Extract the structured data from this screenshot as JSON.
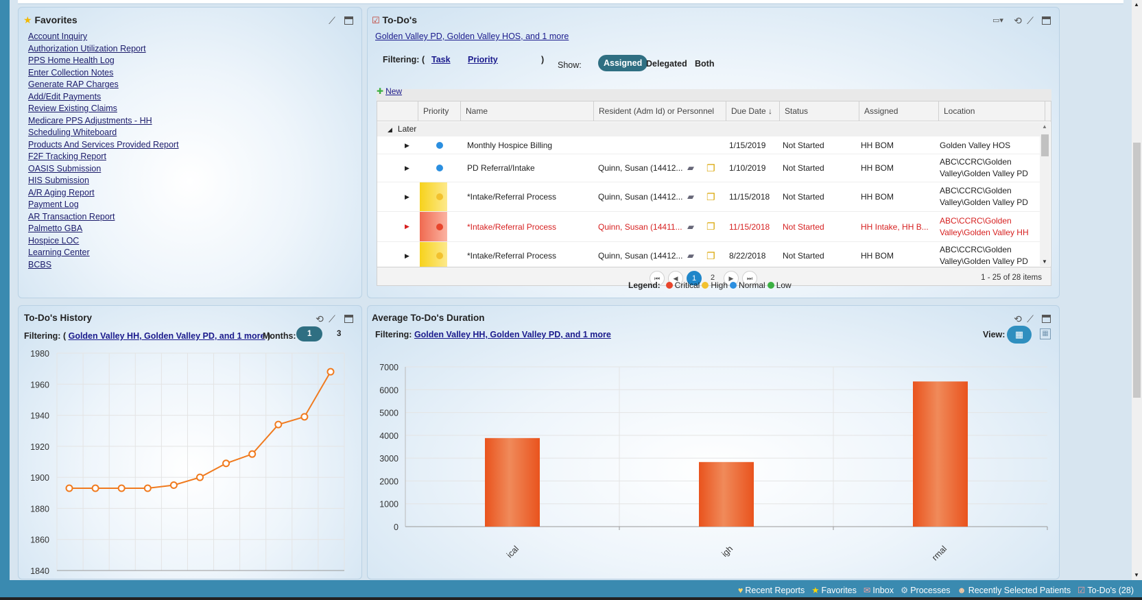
{
  "favorites": {
    "title": "Favorites",
    "items": [
      "Account Inquiry",
      "Authorization Utilization Report",
      "PPS Home Health Log",
      "Enter Collection Notes",
      "Generate RAP Charges",
      "Add/Edit Payments",
      "Review Existing Claims",
      "Medicare PPS Adjustments - HH",
      "Scheduling Whiteboard",
      "Products And Services Provided Report",
      "F2F Tracking Report",
      "OASIS Submission",
      "HIS Submission",
      "A/R Aging Report",
      "Payment Log",
      "AR Transaction Report",
      "Palmetto GBA",
      "Hospice LOC",
      "Learning Center",
      "BCBS"
    ]
  },
  "todos": {
    "title": "To-Do's",
    "location_filter": "Golden Valley PD, Golden Valley HOS, and 1 more",
    "filtering_label": "Filtering: (",
    "filter_task": "Task",
    "filter_priority": "Priority",
    "filter_close": ")",
    "show_label": "Show:",
    "show_options": [
      "Assigned",
      "Delegated",
      "Both"
    ],
    "new_label": "New",
    "columns": [
      "Priority",
      "Name",
      "Resident (Adm Id) or Personnel",
      "Due Date ↓",
      "Status",
      "Assigned",
      "Location"
    ],
    "group": "Later",
    "rows": [
      {
        "priority": "Normal",
        "name": "Monthly Hospice Billing",
        "resident": "",
        "due": "1/15/2019",
        "status": "Not Started",
        "assigned": "HH BOM",
        "loc1": "Golden Valley HOS",
        "loc2": ""
      },
      {
        "priority": "Normal",
        "name": "PD Referral/Intake",
        "resident": "Quinn, Susan (14412...",
        "due": "1/10/2019",
        "status": "Not Started",
        "assigned": "HH BOM",
        "loc1": "ABC\\CCRC\\Golden",
        "loc2": "Valley\\Golden Valley PD"
      },
      {
        "priority": "High",
        "name": "*Intake/Referral Process",
        "resident": "Quinn, Susan (14412...",
        "due": "11/15/2018",
        "status": "Not Started",
        "assigned": "HH BOM",
        "loc1": "ABC\\CCRC\\Golden",
        "loc2": "Valley\\Golden Valley PD"
      },
      {
        "priority": "Critical",
        "name": "*Intake/Referral Process",
        "resident": "Quinn, Susan (14411...",
        "due": "11/15/2018",
        "status": "Not Started",
        "assigned": "HH Intake, HH B...",
        "loc1": "ABC\\CCRC\\Golden",
        "loc2": "Valley\\Golden Valley HH"
      },
      {
        "priority": "High",
        "name": "*Intake/Referral Process",
        "resident": "Quinn, Susan (14412...",
        "due": "8/22/2018",
        "status": "Not Started",
        "assigned": "HH BOM",
        "loc1": "ABC\\CCRC\\Golden",
        "loc2": "Valley\\Golden Valley PD"
      }
    ],
    "pager": {
      "current": "1",
      "next": "2",
      "summary": "1 - 25 of 28 items"
    },
    "legend": {
      "label": "Legend:",
      "critical": "Critical",
      "high": "High",
      "normal": "Normal",
      "low": "Low"
    },
    "colors": {
      "critical": "#e8452c",
      "high": "#f2c12e",
      "normal": "#2b8fe0",
      "low": "#3cb043"
    }
  },
  "history": {
    "title": "To-Do's History",
    "filtering_label": "Filtering: (",
    "filter_link": "Golden Valley HH, Golden Valley PD, and 1 more",
    "filter_close": ")",
    "months_label": "Months:",
    "months_options": [
      "1",
      "3"
    ]
  },
  "duration": {
    "title": "Average To-Do's Duration",
    "filtering_label": "Filtering:",
    "filter_link": "Golden Valley HH, Golden Valley PD, and 1 more",
    "view_label": "View:"
  },
  "statusbar": [
    "Recent Reports",
    "Favorites",
    "Inbox",
    "Processes",
    "Recently Selected Patients",
    "To-Do's (28)"
  ],
  "chart_data": [
    {
      "type": "line",
      "title": "",
      "x": [
        1,
        2,
        3,
        4,
        5,
        6,
        7,
        8,
        9,
        10,
        11
      ],
      "values": [
        1893,
        1893,
        1893,
        1893,
        1895,
        1900,
        1909,
        1915,
        1934,
        1939,
        1968
      ],
      "ylim": [
        1840,
        1980
      ],
      "yticks": [
        1980,
        1960,
        1940,
        1920,
        1900,
        1880,
        1860,
        1840
      ],
      "color": "#f07a1e",
      "grid": true
    },
    {
      "type": "bar",
      "title": "",
      "categories": [
        "Critical",
        "High",
        "Normal"
      ],
      "category_labels_visible": [
        "ical",
        "igh",
        "rmal"
      ],
      "values": [
        3880,
        2830,
        6360
      ],
      "ylim": [
        0,
        7000
      ],
      "yticks": [
        7000,
        6000,
        5000,
        4000,
        3000,
        2000,
        1000,
        0
      ],
      "color": "#e95f24",
      "grid": true
    }
  ]
}
